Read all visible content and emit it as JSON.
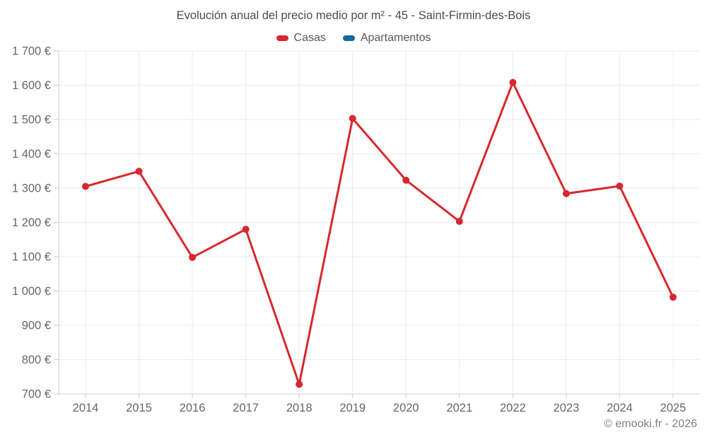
{
  "footer": {
    "copyright": "© emooki.fr - 2026"
  },
  "chart_data": {
    "type": "line",
    "title": "Evolución anual del precio medio por m² - 45 - Saint-Firmin-des-Bois",
    "categories": [
      "2014",
      "2015",
      "2016",
      "2017",
      "2018",
      "2019",
      "2020",
      "2021",
      "2022",
      "2023",
      "2024",
      "2025"
    ],
    "series": [
      {
        "name": "Casas",
        "color": "#d7282d",
        "values": [
          1305,
          1349,
          1098,
          1180,
          728,
          1503,
          1323,
          1203,
          1608,
          1284,
          1306,
          982
        ]
      },
      {
        "name": "Apartamentos",
        "color": "#17689b",
        "values": []
      }
    ],
    "ylim": [
      700,
      1700
    ],
    "ytick_step": 100,
    "ytick_format": "{value} €",
    "xlabel": "",
    "ylabel": "",
    "grid": true,
    "legend_position": "top",
    "colors": {
      "grid": "#ececec",
      "axis": "#cccccc",
      "axis_text": "#666666",
      "title_text": "#4c4c4c",
      "footer_text": "#808080"
    }
  }
}
